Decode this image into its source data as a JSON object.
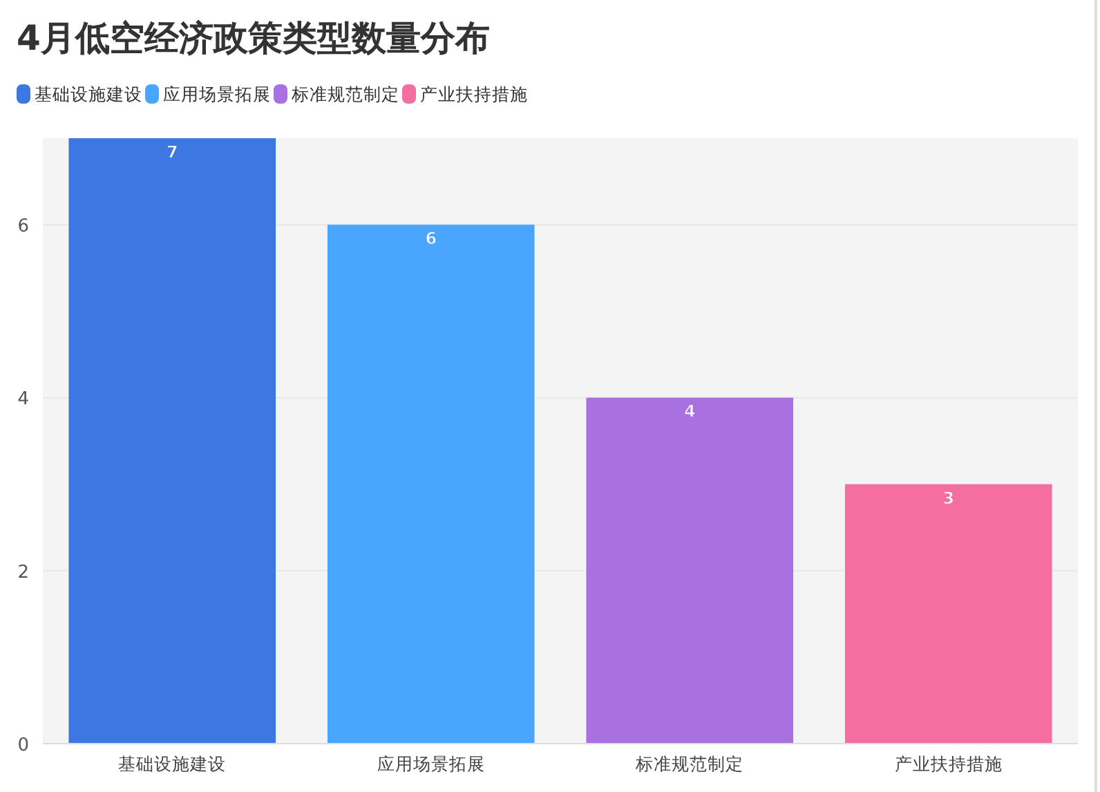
{
  "chart_data": {
    "type": "bar",
    "title": "4月低空经济政策类型数量分布",
    "categories": [
      "基础设施建设",
      "应用场景拓展",
      "标准规范制定",
      "产业扶持措施"
    ],
    "series": [
      {
        "name": "基础设施建设",
        "color": "#3d77e2",
        "values": [
          7,
          null,
          null,
          null
        ]
      },
      {
        "name": "应用场景拓展",
        "color": "#4aa6fd",
        "values": [
          null,
          6,
          null,
          null
        ]
      },
      {
        "name": "标准规范制定",
        "color": "#a970e0",
        "values": [
          null,
          null,
          4,
          null
        ]
      },
      {
        "name": "产业扶持措施",
        "color": "#f46fa0",
        "values": [
          null,
          null,
          null,
          3
        ]
      }
    ],
    "stacked": true,
    "ylim": [
      0,
      7
    ],
    "yticks": [
      0,
      2,
      4,
      6
    ],
    "grid": "y",
    "legend": "top left",
    "data_labels": true
  }
}
